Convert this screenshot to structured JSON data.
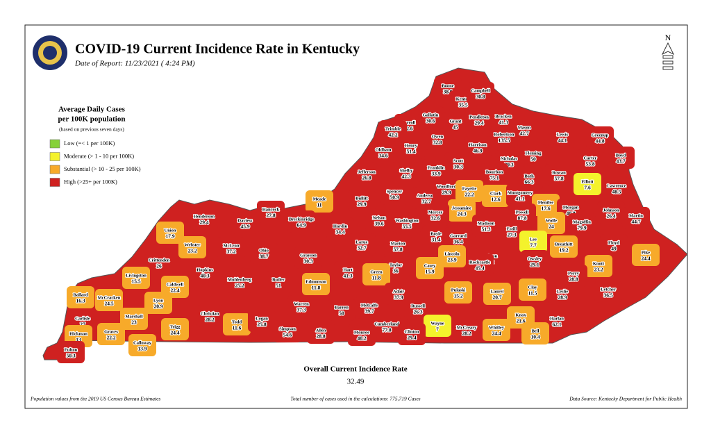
{
  "header": {
    "title": "COVID-19 Current Incidence Rate in Kentucky",
    "date": "Date of Report: 11/23/2021 ( 4:24 PM)"
  },
  "compass": "N",
  "legend": {
    "title_line1": "Average Daily Cases",
    "title_line2": "per 100K population",
    "note": "(based on previous seven days)",
    "items": [
      {
        "label": "Low (=< 1 per 100K)",
        "color": "#86d13a"
      },
      {
        "label": "Moderate (> 1 - 10 per 100K)",
        "color": "#f4f22c"
      },
      {
        "label": "Substantial (> 10 - 25 per 100K)",
        "color": "#f7aa2a"
      },
      {
        "label": "High (>25+ per 100K)",
        "color": "#cf2120"
      }
    ]
  },
  "counties": [
    {
      "name": "Boone",
      "value": 38.9,
      "color": "#cf2120"
    },
    {
      "name": "Kenton",
      "value": 35.5,
      "color": "#cf2120"
    },
    {
      "name": "Campbell",
      "value": 30.8,
      "color": "#cf2120"
    },
    {
      "name": "Gallatin",
      "value": 30.6,
      "color": "#cf2120"
    },
    {
      "name": "Carroll",
      "value": 72.6,
      "color": "#cf2120"
    },
    {
      "name": "Trimble",
      "value": 42.2,
      "color": "#cf2120"
    },
    {
      "name": "Grant",
      "value": 45,
      "color": "#cf2120"
    },
    {
      "name": "Pendleton",
      "value": 29.4,
      "color": "#cf2120"
    },
    {
      "name": "Bracken",
      "value": 41.3,
      "color": "#cf2120"
    },
    {
      "name": "Mason",
      "value": 42.7,
      "color": "#cf2120"
    },
    {
      "name": "Robertson",
      "value": 135.5,
      "color": "#cf2120"
    },
    {
      "name": "Lewis",
      "value": 44.1,
      "color": "#cf2120"
    },
    {
      "name": "Greenup",
      "value": 44.8,
      "color": "#cf2120"
    },
    {
      "name": "Boyd",
      "value": 43.7,
      "color": "#cf2120"
    },
    {
      "name": "Carter",
      "value": 53.8,
      "color": "#cf2120"
    },
    {
      "name": "Owen",
      "value": 32.8,
      "color": "#cf2120"
    },
    {
      "name": "Henry",
      "value": 51.4,
      "color": "#cf2120"
    },
    {
      "name": "Oldham",
      "value": 34.6,
      "color": "#cf2120"
    },
    {
      "name": "Harrison",
      "value": 46.9,
      "color": "#cf2120"
    },
    {
      "name": "Fleming",
      "value": 50,
      "color": "#cf2120"
    },
    {
      "name": "Nicholas",
      "value": 39.3,
      "color": "#cf2120"
    },
    {
      "name": "Scott",
      "value": 30.3,
      "color": "#cf2120"
    },
    {
      "name": "Franklin",
      "value": 33.9,
      "color": "#cf2120"
    },
    {
      "name": "Shelby",
      "value": 42.3,
      "color": "#cf2120"
    },
    {
      "name": "Jefferson",
      "value": 26.8,
      "color": "#cf2120"
    },
    {
      "name": "Bourbon",
      "value": 75.1,
      "color": "#cf2120"
    },
    {
      "name": "Bath",
      "value": 66.3,
      "color": "#cf2120"
    },
    {
      "name": "Rowan",
      "value": 57.8,
      "color": "#cf2120"
    },
    {
      "name": "Elliott",
      "value": 7.6,
      "color": "#f4f22c"
    },
    {
      "name": "Lawrence",
      "value": 48.5,
      "color": "#cf2120"
    },
    {
      "name": "Spencer",
      "value": 50.9,
      "color": "#cf2120"
    },
    {
      "name": "Anderson",
      "value": 32.7,
      "color": "#cf2120"
    },
    {
      "name": "Woodford",
      "value": 29.9,
      "color": "#cf2120"
    },
    {
      "name": "Fayette",
      "value": 22.2,
      "color": "#f7aa2a"
    },
    {
      "name": "Clark",
      "value": 12.6,
      "color": "#f7aa2a"
    },
    {
      "name": "Montgomery",
      "value": 41.1,
      "color": "#cf2120"
    },
    {
      "name": "Menifee",
      "value": 17.6,
      "color": "#f7aa2a"
    },
    {
      "name": "Morgan",
      "value": 40.8,
      "color": "#cf2120"
    },
    {
      "name": "Johnson",
      "value": 26.4,
      "color": "#cf2120"
    },
    {
      "name": "Martin",
      "value": 44.7,
      "color": "#cf2120"
    },
    {
      "name": "Bullitt",
      "value": 29.9,
      "color": "#cf2120"
    },
    {
      "name": "Meade",
      "value": 11,
      "color": "#f7aa2a"
    },
    {
      "name": "Hancock",
      "value": 27.8,
      "color": "#cf2120"
    },
    {
      "name": "Henderson",
      "value": 29.4,
      "color": "#cf2120"
    },
    {
      "name": "Daviess",
      "value": 45.9,
      "color": "#cf2120"
    },
    {
      "name": "Breckinridge",
      "value": 64.9,
      "color": "#cf2120"
    },
    {
      "name": "Jessamine",
      "value": 24.3,
      "color": "#f7aa2a"
    },
    {
      "name": "Mercer",
      "value": 32.6,
      "color": "#cf2120"
    },
    {
      "name": "Washington",
      "value": 55.5,
      "color": "#cf2120"
    },
    {
      "name": "Nelson",
      "value": 39.6,
      "color": "#cf2120"
    },
    {
      "name": "Powell",
      "value": 87.8,
      "color": "#cf2120"
    },
    {
      "name": "Wolfe",
      "value": 24,
      "color": "#f7aa2a"
    },
    {
      "name": "Magoffin",
      "value": 79.9,
      "color": "#cf2120"
    },
    {
      "name": "Madison",
      "value": 51.3,
      "color": "#cf2120"
    },
    {
      "name": "Estill",
      "value": 27.3,
      "color": "#cf2120"
    },
    {
      "name": "Hardin",
      "value": 34.4,
      "color": "#cf2120"
    },
    {
      "name": "Union",
      "value": 17.9,
      "color": "#f7aa2a"
    },
    {
      "name": "Boyle",
      "value": 31.4,
      "color": "#cf2120"
    },
    {
      "name": "Garrard",
      "value": 36.4,
      "color": "#cf2120"
    },
    {
      "name": "Lee",
      "value": 7.7,
      "color": "#f4f22c"
    },
    {
      "name": "Breathitt",
      "value": 19.2,
      "color": "#f7aa2a"
    },
    {
      "name": "Floyd",
      "value": 49,
      "color": "#cf2120"
    },
    {
      "name": "Pike",
      "value": 24.4,
      "color": "#f7aa2a"
    },
    {
      "name": "Larue",
      "value": 32.7,
      "color": "#cf2120"
    },
    {
      "name": "Marion",
      "value": 57.8,
      "color": "#cf2120"
    },
    {
      "name": "McLean",
      "value": 37.2,
      "color": "#cf2120"
    },
    {
      "name": "Webster",
      "value": 23.2,
      "color": "#f7aa2a"
    },
    {
      "name": "Ohio",
      "value": 38.7,
      "color": "#cf2120"
    },
    {
      "name": "Grayson",
      "value": 30.3,
      "color": "#cf2120"
    },
    {
      "name": "Lincoln",
      "value": 23.9,
      "color": "#f7aa2a"
    },
    {
      "name": "Jackson",
      "value": 47.2,
      "color": "#cf2120"
    },
    {
      "name": "Owsley",
      "value": 29.1,
      "color": "#cf2120"
    },
    {
      "name": "Knott",
      "value": 23.2,
      "color": "#f7aa2a"
    },
    {
      "name": "Rockcastle",
      "value": 45.4,
      "color": "#cf2120"
    },
    {
      "name": "Crittenden",
      "value": 26,
      "color": "#cf2120"
    },
    {
      "name": "Hopkins",
      "value": 40.3,
      "color": "#cf2120"
    },
    {
      "name": "Taylor",
      "value": 36,
      "color": "#cf2120"
    },
    {
      "name": "Casey",
      "value": 15.9,
      "color": "#f7aa2a"
    },
    {
      "name": "Hart",
      "value": 41.3,
      "color": "#cf2120"
    },
    {
      "name": "Green",
      "value": 11.8,
      "color": "#f7aa2a"
    },
    {
      "name": "Perry",
      "value": 28.8,
      "color": "#cf2120"
    },
    {
      "name": "Muhlenberg",
      "value": 25.2,
      "color": "#cf2120"
    },
    {
      "name": "Butler",
      "value": 51,
      "color": "#cf2120"
    },
    {
      "name": "Edmonson",
      "value": 11.8,
      "color": "#f7aa2a"
    },
    {
      "name": "Livingston",
      "value": 15.5,
      "color": "#f7aa2a"
    },
    {
      "name": "Caldwell",
      "value": 22.4,
      "color": "#f7aa2a"
    },
    {
      "name": "Pulaski",
      "value": 15.2,
      "color": "#f7aa2a"
    },
    {
      "name": "Laurel",
      "value": 20.7,
      "color": "#f7aa2a"
    },
    {
      "name": "Clay",
      "value": 11.5,
      "color": "#f7aa2a"
    },
    {
      "name": "Leslie",
      "value": 28.9,
      "color": "#cf2120"
    },
    {
      "name": "Letcher",
      "value": 36.5,
      "color": "#cf2120"
    },
    {
      "name": "Adair",
      "value": 37.9,
      "color": "#cf2120"
    },
    {
      "name": "Ballard",
      "value": 16.3,
      "color": "#f7aa2a"
    },
    {
      "name": "McCracken",
      "value": 24.5,
      "color": "#f7aa2a"
    },
    {
      "name": "Lyon",
      "value": 20.9,
      "color": "#f7aa2a"
    },
    {
      "name": "Warren",
      "value": 37.3,
      "color": "#cf2120"
    },
    {
      "name": "Barren",
      "value": 50,
      "color": "#cf2120"
    },
    {
      "name": "Metcalfe",
      "value": 39.7,
      "color": "#cf2120"
    },
    {
      "name": "Russell",
      "value": 26.3,
      "color": "#cf2120"
    },
    {
      "name": "Christian",
      "value": 28.2,
      "color": "#cf2120"
    },
    {
      "name": "Marshall",
      "value": 23,
      "color": "#f7aa2a"
    },
    {
      "name": "Todd",
      "value": 11.6,
      "color": "#f7aa2a"
    },
    {
      "name": "Logan",
      "value": 25.8,
      "color": "#cf2120"
    },
    {
      "name": "Knox",
      "value": 21.6,
      "color": "#f7aa2a"
    },
    {
      "name": "Harlan",
      "value": 62.1,
      "color": "#cf2120"
    },
    {
      "name": "Carlisle",
      "value": 27,
      "color": "#cf2120"
    },
    {
      "name": "Trigg",
      "value": 24.4,
      "color": "#f7aa2a"
    },
    {
      "name": "Wayne",
      "value": 7,
      "color": "#f4f22c"
    },
    {
      "name": "McCreary",
      "value": 28.2,
      "color": "#cf2120"
    },
    {
      "name": "Whitley",
      "value": 24.4,
      "color": "#f7aa2a"
    },
    {
      "name": "Bell",
      "value": 10.4,
      "color": "#f7aa2a"
    },
    {
      "name": "Simpson",
      "value": 54.6,
      "color": "#cf2120"
    },
    {
      "name": "Allen",
      "value": 28.8,
      "color": "#cf2120"
    },
    {
      "name": "Cumberland",
      "value": 77.8,
      "color": "#cf2120"
    },
    {
      "name": "Monroe",
      "value": 40.2,
      "color": "#cf2120"
    },
    {
      "name": "Clinton",
      "value": 29.4,
      "color": "#cf2120"
    },
    {
      "name": "Graves",
      "value": 22.2,
      "color": "#f7aa2a"
    },
    {
      "name": "Hickman",
      "value": 13,
      "color": "#f7aa2a"
    },
    {
      "name": "Calloway",
      "value": 13.9,
      "color": "#f7aa2a"
    },
    {
      "name": "Fulton",
      "value": 50.3,
      "color": "#cf2120"
    }
  ],
  "summary": {
    "label": "Overall Current Incidence Rate",
    "value": 32.49
  },
  "footer": {
    "left": "Population values from the 2019 US Census Bureau Estimates",
    "center": "Total number of cases used in the calculations: 775,719 Cases",
    "right": "Data Source: Kentucky Department for Public Health"
  }
}
